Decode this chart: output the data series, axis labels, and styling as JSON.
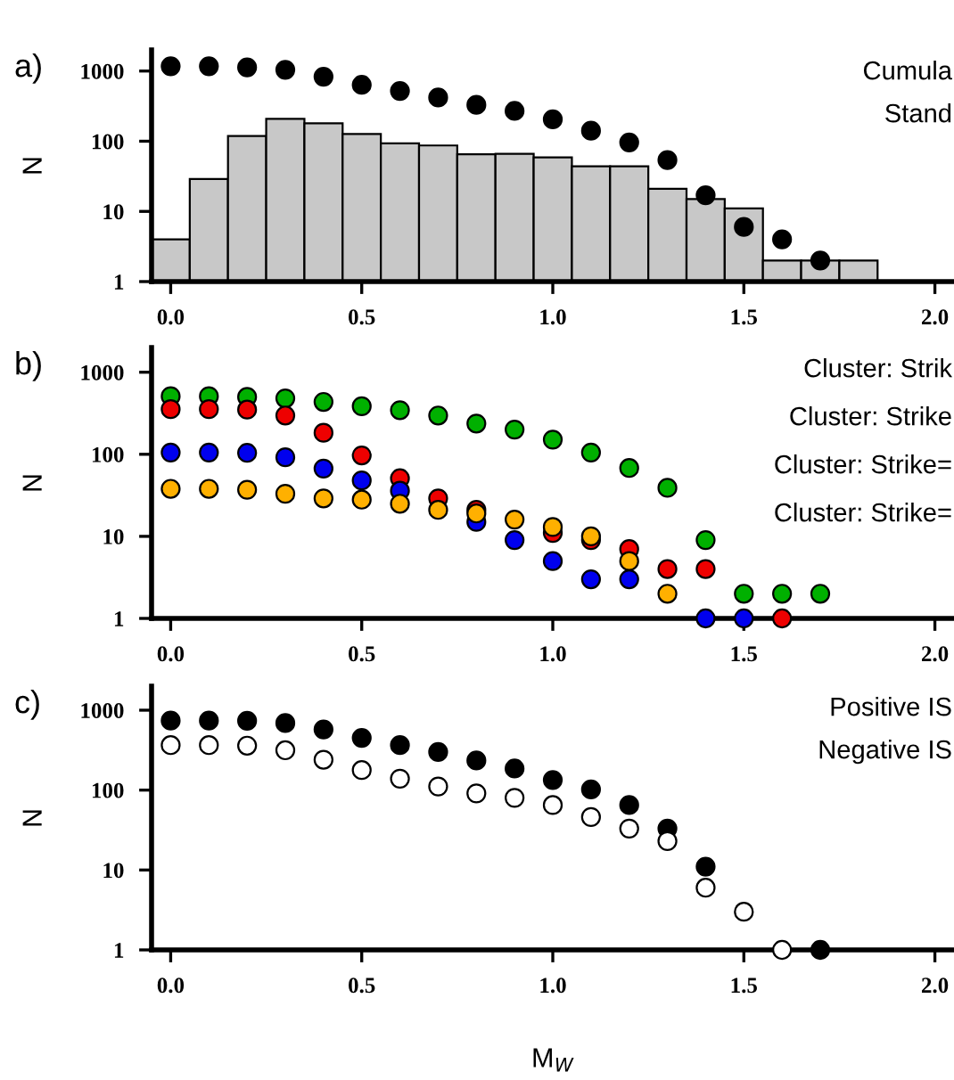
{
  "chart_data": [
    {
      "type": "histogram",
      "ylabel": "N",
      "log": true,
      "marker": "circle",
      "grid": false,
      "xlim": [
        -0.05,
        2.05
      ],
      "ylim": [
        1,
        2000
      ],
      "xticks": [
        {
          "value": 0,
          "label": "0.0"
        },
        {
          "value": 0.5,
          "label": "0.5"
        },
        {
          "value": 1,
          "label": "1.0"
        },
        {
          "value": 1.5,
          "label": "1.5"
        },
        {
          "value": 2,
          "label": "2.0"
        }
      ],
      "yticks": [
        1,
        10,
        100,
        1000
      ],
      "annotations": [
        "a)",
        "Cumula",
        "Stand"
      ],
      "series": [
        {
          "type": "histogram",
          "color": "#c8c8c8",
          "bins": [
            -0.05,
            0.05,
            0.15,
            0.25,
            0.35,
            0.45,
            0.55,
            0.65,
            0.75,
            0.85,
            0.95,
            1.05,
            1.15,
            1.25,
            1.35,
            1.45,
            1.55,
            1.65,
            1.75,
            1.85
          ],
          "values": [
            4,
            29,
            119,
            208,
            180,
            127,
            93,
            87,
            65,
            66,
            59,
            44,
            44,
            21,
            15,
            11,
            2,
            2,
            2
          ]
        },
        {
          "type": "scatter",
          "color": "#000000",
          "x": [
            0,
            0.1,
            0.2,
            0.3,
            0.4,
            0.5,
            0.6,
            0.7,
            0.8,
            0.9,
            1.0,
            1.1,
            1.2,
            1.3,
            1.4,
            1.5,
            1.6,
            1.7
          ],
          "values": [
            1170,
            1170,
            1130,
            1040,
            830,
            635,
            520,
            420,
            330,
            270,
            205,
            141,
            96,
            54,
            17,
            6,
            4,
            2
          ]
        }
      ]
    },
    {
      "type": "scatter",
      "ylabel": "N",
      "log": true,
      "marker": "circle",
      "grid": false,
      "xlim": [
        -0.05,
        2.05
      ],
      "ylim": [
        1,
        2000
      ],
      "xticks": [
        {
          "value": 0,
          "label": "0.0"
        },
        {
          "value": 0.5,
          "label": "0.5"
        },
        {
          "value": 1,
          "label": "1.0"
        },
        {
          "value": 1.5,
          "label": "1.5"
        },
        {
          "value": 2,
          "label": "2.0"
        }
      ],
      "yticks": [
        1,
        10,
        100,
        1000
      ],
      "annotations": [
        "b)",
        "Cluster: Strik",
        "Cluster: Strike",
        "Cluster: Strike=",
        "Cluster: Strike="
      ],
      "x": [
        0,
        0.1,
        0.2,
        0.3,
        0.4,
        0.5,
        0.6,
        0.7,
        0.8,
        0.9,
        1.0,
        1.1,
        1.2,
        1.3,
        1.4,
        1.5,
        1.6,
        1.7
      ],
      "series": [
        {
          "color": "#00b000",
          "values": [
            510,
            510,
            500,
            480,
            435,
            385,
            345,
            297,
            237,
            200,
            151,
            105,
            68,
            39,
            9,
            2,
            2,
            2
          ]
        },
        {
          "color": "#ee0000",
          "values": [
            355,
            355,
            350,
            297,
            183,
            97,
            51,
            29,
            21,
            null,
            11,
            9,
            7,
            4,
            4,
            null,
            1,
            null
          ]
        },
        {
          "color": "#0000ee",
          "values": [
            105,
            105,
            104,
            92,
            67,
            48,
            36,
            null,
            15,
            9,
            5,
            3,
            3,
            null,
            1,
            1,
            null,
            null
          ]
        },
        {
          "color": "#ffb000",
          "values": [
            38,
            38,
            37,
            33,
            29,
            28,
            25,
            21,
            19,
            16,
            13,
            10,
            5,
            2,
            null,
            null,
            null,
            null
          ]
        }
      ]
    },
    {
      "type": "scatter",
      "ylabel": "N",
      "xlabel": "M$_{W}$",
      "log": true,
      "marker": "circle",
      "grid": false,
      "xlim": [
        -0.05,
        2.05
      ],
      "ylim": [
        1,
        2000
      ],
      "xticks": [
        {
          "value": 0,
          "label": "0.0"
        },
        {
          "value": 0.5,
          "label": "0.5"
        },
        {
          "value": 1,
          "label": "1.0"
        },
        {
          "value": 1.5,
          "label": "1.5"
        },
        {
          "value": 2,
          "label": "2.0"
        }
      ],
      "yticks": [
        1,
        10,
        100,
        1000
      ],
      "annotations": [
        "c)",
        "Positive IS",
        "Negative IS"
      ],
      "x": [
        0,
        0.1,
        0.2,
        0.3,
        0.4,
        0.5,
        0.6,
        0.7,
        0.8,
        0.9,
        1.0,
        1.1,
        1.2,
        1.3,
        1.4,
        1.5,
        1.6,
        1.7
      ],
      "series": [
        {
          "color": "#000000",
          "values": [
            740,
            740,
            735,
            690,
            575,
            450,
            365,
            300,
            235,
            186,
            134,
            102,
            65,
            33,
            11,
            null,
            null,
            1
          ]
        },
        {
          "color": "#ffffff",
          "values": [
            365,
            365,
            360,
            315,
            240,
            178,
            139,
            111,
            91,
            80,
            65,
            46,
            33,
            23,
            6,
            3,
            1,
            null
          ]
        }
      ]
    }
  ]
}
